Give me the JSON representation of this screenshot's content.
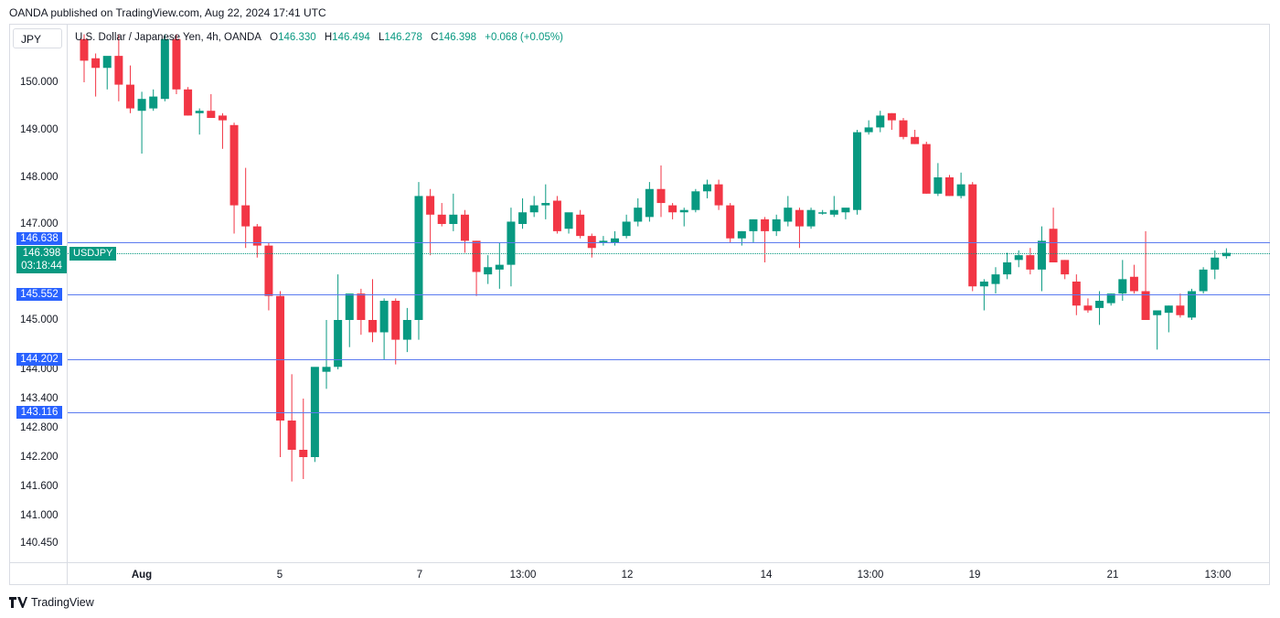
{
  "header": {
    "published": "OANDA published on TradingView.com, Aug 22, 2024 17:41 UTC"
  },
  "toolbar": {
    "currency": "JPY"
  },
  "legend": {
    "title": "U.S. Dollar / Japanese Yen, 4h, OANDA",
    "o_label": "O",
    "o": "146.330",
    "h_label": "H",
    "h": "146.494",
    "l_label": "L",
    "l": "146.278",
    "c_label": "C",
    "c": "146.398",
    "change": "+0.068 (+0.05%)"
  },
  "price_tag": {
    "price": "146.398",
    "timer": "03:18:44",
    "symbol": "USDJPY"
  },
  "levels": [
    "146.638",
    "145.552",
    "144.202",
    "143.116"
  ],
  "y_ticks": [
    "150.000",
    "149.000",
    "148.000",
    "147.000",
    "145.000",
    "144.000",
    "143.400",
    "142.800",
    "142.200",
    "141.600",
    "141.000",
    "140.450"
  ],
  "y_tick_values": [
    150.0,
    149.0,
    148.0,
    147.0,
    145.0,
    144.0,
    143.4,
    142.8,
    142.2,
    141.6,
    141.0,
    140.45
  ],
  "x_ticks": [
    "Aug",
    "5",
    "7",
    "13:00",
    "12",
    "14",
    "13:00",
    "19",
    "21",
    "13:00"
  ],
  "footer": {
    "brand": "TradingView"
  },
  "colors": {
    "up": "#089981",
    "down": "#f23645",
    "level": "#2962ff",
    "line": "#5b7bf0"
  },
  "chart_data": {
    "type": "candlestick",
    "symbol": "USDJPY",
    "timeframe": "4h",
    "series": [
      {
        "o": 150.9,
        "h": 151.0,
        "l": 150.0,
        "c": 150.45
      },
      {
        "o": 150.5,
        "h": 150.6,
        "l": 149.7,
        "c": 150.3
      },
      {
        "o": 150.3,
        "h": 150.5,
        "l": 149.85,
        "c": 150.55
      },
      {
        "o": 150.55,
        "h": 151.0,
        "l": 149.6,
        "c": 149.95
      },
      {
        "o": 149.95,
        "h": 150.35,
        "l": 149.35,
        "c": 149.45
      },
      {
        "o": 149.4,
        "h": 149.8,
        "l": 148.5,
        "c": 149.65
      },
      {
        "o": 149.45,
        "h": 149.85,
        "l": 149.4,
        "c": 149.7
      },
      {
        "o": 149.65,
        "h": 151.0,
        "l": 149.6,
        "c": 150.9
      },
      {
        "o": 150.9,
        "h": 151.0,
        "l": 149.75,
        "c": 149.85
      },
      {
        "o": 149.85,
        "h": 149.9,
        "l": 149.3,
        "c": 149.3
      },
      {
        "o": 149.35,
        "h": 149.45,
        "l": 148.9,
        "c": 149.4
      },
      {
        "o": 149.4,
        "h": 149.75,
        "l": 149.3,
        "c": 149.25
      },
      {
        "o": 149.3,
        "h": 149.35,
        "l": 148.6,
        "c": 149.2
      },
      {
        "o": 149.1,
        "h": 149.15,
        "l": 146.8,
        "c": 147.4
      },
      {
        "o": 147.4,
        "h": 148.2,
        "l": 146.5,
        "c": 146.95
      },
      {
        "o": 146.95,
        "h": 147.0,
        "l": 146.3,
        "c": 146.55
      },
      {
        "o": 146.55,
        "h": 146.6,
        "l": 145.2,
        "c": 145.5
      },
      {
        "o": 145.5,
        "h": 145.6,
        "l": 142.2,
        "c": 142.95
      },
      {
        "o": 142.95,
        "h": 143.9,
        "l": 141.7,
        "c": 142.35
      },
      {
        "o": 142.35,
        "h": 143.4,
        "l": 141.75,
        "c": 142.2
      },
      {
        "o": 142.2,
        "h": 144.0,
        "l": 142.1,
        "c": 144.05
      },
      {
        "o": 143.95,
        "h": 145.0,
        "l": 143.6,
        "c": 144.05
      },
      {
        "o": 144.05,
        "h": 145.95,
        "l": 144.0,
        "c": 145.0
      },
      {
        "o": 145.0,
        "h": 145.5,
        "l": 144.45,
        "c": 145.55
      },
      {
        "o": 145.55,
        "h": 145.65,
        "l": 144.7,
        "c": 145.0
      },
      {
        "o": 145.0,
        "h": 145.85,
        "l": 144.55,
        "c": 144.75
      },
      {
        "o": 144.75,
        "h": 145.45,
        "l": 144.2,
        "c": 145.4
      },
      {
        "o": 145.4,
        "h": 145.45,
        "l": 144.1,
        "c": 144.6
      },
      {
        "o": 144.6,
        "h": 145.25,
        "l": 144.35,
        "c": 145.0
      },
      {
        "o": 145.0,
        "h": 147.9,
        "l": 144.6,
        "c": 147.6
      },
      {
        "o": 147.6,
        "h": 147.75,
        "l": 146.35,
        "c": 147.2
      },
      {
        "o": 147.2,
        "h": 147.45,
        "l": 146.95,
        "c": 147.0
      },
      {
        "o": 147.0,
        "h": 147.65,
        "l": 146.85,
        "c": 147.2
      },
      {
        "o": 147.2,
        "h": 147.3,
        "l": 146.4,
        "c": 146.65
      },
      {
        "o": 146.65,
        "h": 146.65,
        "l": 145.5,
        "c": 146.0
      },
      {
        "o": 145.95,
        "h": 146.35,
        "l": 145.75,
        "c": 146.1
      },
      {
        "o": 146.05,
        "h": 146.6,
        "l": 145.65,
        "c": 146.15
      },
      {
        "o": 146.15,
        "h": 147.35,
        "l": 145.7,
        "c": 147.05
      },
      {
        "o": 147.0,
        "h": 147.55,
        "l": 146.9,
        "c": 147.25
      },
      {
        "o": 147.25,
        "h": 147.6,
        "l": 147.15,
        "c": 147.4
      },
      {
        "o": 147.4,
        "h": 147.85,
        "l": 147.1,
        "c": 147.45
      },
      {
        "o": 147.5,
        "h": 147.6,
        "l": 146.8,
        "c": 146.85
      },
      {
        "o": 146.9,
        "h": 147.2,
        "l": 146.8,
        "c": 147.25
      },
      {
        "o": 147.2,
        "h": 147.3,
        "l": 146.7,
        "c": 146.75
      },
      {
        "o": 146.75,
        "h": 146.8,
        "l": 146.3,
        "c": 146.5
      },
      {
        "o": 146.6,
        "h": 146.75,
        "l": 146.55,
        "c": 146.65
      },
      {
        "o": 146.6,
        "h": 146.85,
        "l": 146.55,
        "c": 146.7
      },
      {
        "o": 146.75,
        "h": 147.2,
        "l": 146.7,
        "c": 147.05
      },
      {
        "o": 147.05,
        "h": 147.55,
        "l": 146.95,
        "c": 147.35
      },
      {
        "o": 147.15,
        "h": 147.9,
        "l": 147.05,
        "c": 147.75
      },
      {
        "o": 147.75,
        "h": 148.25,
        "l": 147.15,
        "c": 147.45
      },
      {
        "o": 147.4,
        "h": 147.45,
        "l": 147.1,
        "c": 147.25
      },
      {
        "o": 147.25,
        "h": 147.35,
        "l": 146.95,
        "c": 147.3
      },
      {
        "o": 147.3,
        "h": 147.75,
        "l": 147.25,
        "c": 147.7
      },
      {
        "o": 147.7,
        "h": 147.95,
        "l": 147.55,
        "c": 147.85
      },
      {
        "o": 147.85,
        "h": 147.95,
        "l": 147.3,
        "c": 147.4
      },
      {
        "o": 147.4,
        "h": 147.45,
        "l": 146.6,
        "c": 146.7
      },
      {
        "o": 146.7,
        "h": 146.85,
        "l": 146.55,
        "c": 146.85
      },
      {
        "o": 146.85,
        "h": 147.1,
        "l": 146.6,
        "c": 147.1
      },
      {
        "o": 147.1,
        "h": 147.15,
        "l": 146.2,
        "c": 146.85
      },
      {
        "o": 146.85,
        "h": 147.2,
        "l": 146.75,
        "c": 147.1
      },
      {
        "o": 147.05,
        "h": 147.6,
        "l": 146.95,
        "c": 147.35
      },
      {
        "o": 147.3,
        "h": 147.35,
        "l": 146.5,
        "c": 146.95
      },
      {
        "o": 146.95,
        "h": 147.35,
        "l": 146.9,
        "c": 147.3
      },
      {
        "o": 147.25,
        "h": 147.3,
        "l": 147.2,
        "c": 147.25
      },
      {
        "o": 147.2,
        "h": 147.6,
        "l": 147.15,
        "c": 147.3
      },
      {
        "o": 147.25,
        "h": 147.3,
        "l": 147.1,
        "c": 147.35
      },
      {
        "o": 147.3,
        "h": 149.0,
        "l": 147.2,
        "c": 148.95
      },
      {
        "o": 148.95,
        "h": 149.2,
        "l": 148.9,
        "c": 149.05
      },
      {
        "o": 149.05,
        "h": 149.4,
        "l": 148.95,
        "c": 149.3
      },
      {
        "o": 149.35,
        "h": 149.35,
        "l": 149.0,
        "c": 149.2
      },
      {
        "o": 149.2,
        "h": 149.25,
        "l": 148.8,
        "c": 148.85
      },
      {
        "o": 148.85,
        "h": 149.0,
        "l": 148.7,
        "c": 148.7
      },
      {
        "o": 148.7,
        "h": 148.75,
        "l": 147.65,
        "c": 147.65
      },
      {
        "o": 147.65,
        "h": 148.3,
        "l": 147.6,
        "c": 148.0
      },
      {
        "o": 148.0,
        "h": 148.05,
        "l": 147.6,
        "c": 147.6
      },
      {
        "o": 147.6,
        "h": 148.1,
        "l": 147.55,
        "c": 147.85
      },
      {
        "o": 147.85,
        "h": 147.9,
        "l": 145.6,
        "c": 145.7
      },
      {
        "o": 145.7,
        "h": 145.85,
        "l": 145.2,
        "c": 145.8
      },
      {
        "o": 145.75,
        "h": 146.1,
        "l": 145.55,
        "c": 145.95
      },
      {
        "o": 145.95,
        "h": 146.4,
        "l": 145.85,
        "c": 146.2
      },
      {
        "o": 146.25,
        "h": 146.45,
        "l": 146.1,
        "c": 146.35
      },
      {
        "o": 146.35,
        "h": 146.5,
        "l": 145.95,
        "c": 146.05
      },
      {
        "o": 146.05,
        "h": 146.95,
        "l": 145.6,
        "c": 146.65
      },
      {
        "o": 146.9,
        "h": 147.35,
        "l": 146.2,
        "c": 146.2
      },
      {
        "o": 146.25,
        "h": 146.25,
        "l": 145.85,
        "c": 145.95
      },
      {
        "o": 145.8,
        "h": 145.95,
        "l": 145.1,
        "c": 145.3
      },
      {
        "o": 145.3,
        "h": 145.45,
        "l": 145.15,
        "c": 145.2
      },
      {
        "o": 145.25,
        "h": 145.6,
        "l": 144.9,
        "c": 145.4
      },
      {
        "o": 145.35,
        "h": 145.55,
        "l": 145.3,
        "c": 145.55
      },
      {
        "o": 145.55,
        "h": 146.25,
        "l": 145.4,
        "c": 145.85
      },
      {
        "o": 145.9,
        "h": 146.15,
        "l": 145.55,
        "c": 145.6
      },
      {
        "o": 145.6,
        "h": 146.85,
        "l": 145.1,
        "c": 145.0
      },
      {
        "o": 145.1,
        "h": 145.2,
        "l": 144.4,
        "c": 145.2
      },
      {
        "o": 145.15,
        "h": 145.3,
        "l": 144.75,
        "c": 145.3
      },
      {
        "o": 145.3,
        "h": 145.55,
        "l": 145.05,
        "c": 145.1
      },
      {
        "o": 145.05,
        "h": 145.65,
        "l": 145.0,
        "c": 145.6
      },
      {
        "o": 145.6,
        "h": 146.1,
        "l": 145.55,
        "c": 146.05
      },
      {
        "o": 146.05,
        "h": 146.45,
        "l": 145.85,
        "c": 146.3
      },
      {
        "o": 146.33,
        "h": 146.494,
        "l": 146.278,
        "c": 146.398
      }
    ]
  }
}
